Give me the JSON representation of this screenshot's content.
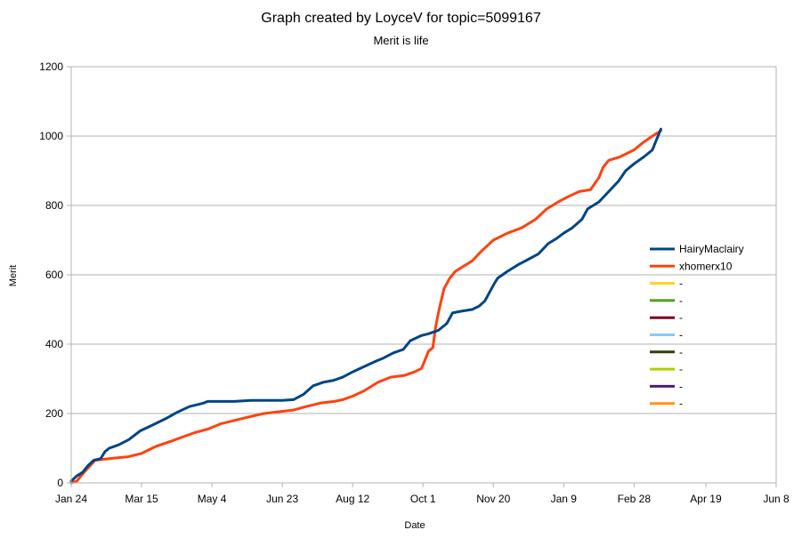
{
  "chart_data": {
    "type": "line",
    "title": "Graph created by LoyceV for topic=5099167",
    "subtitle": "Merit is life",
    "xlabel": "Date",
    "ylabel": "Merit",
    "ylim": [
      0,
      1200
    ],
    "yticks": [
      "0",
      "200",
      "400",
      "600",
      "800",
      "1000",
      "1200"
    ],
    "xlim": [
      "2019-01-24",
      "2020-06-08"
    ],
    "xticks": [
      {
        "date": "2019-01-24",
        "label": "Jan 24"
      },
      {
        "date": "2019-03-15",
        "label": "Mar 15"
      },
      {
        "date": "2019-05-04",
        "label": "May 4"
      },
      {
        "date": "2019-06-23",
        "label": "Jun 23"
      },
      {
        "date": "2019-08-12",
        "label": "Aug 12"
      },
      {
        "date": "2019-10-01",
        "label": "Oct 1"
      },
      {
        "date": "2019-11-20",
        "label": "Nov 20"
      },
      {
        "date": "2020-01-09",
        "label": "Jan 9"
      },
      {
        "date": "2020-02-28",
        "label": "Feb 28"
      },
      {
        "date": "2020-04-19",
        "label": "Apr 19"
      },
      {
        "date": "2020-06-08",
        "label": "Jun 8"
      }
    ],
    "grid": "horizontal",
    "legend_position": "right",
    "series": [
      {
        "name": "HairyMaclairy",
        "color": "#004586",
        "x": [
          "2019-01-24",
          "2019-01-28",
          "2019-02-01",
          "2019-02-05",
          "2019-02-09",
          "2019-02-14",
          "2019-02-17",
          "2019-02-20",
          "2019-02-27",
          "2019-03-06",
          "2019-03-14",
          "2019-03-22",
          "2019-04-01",
          "2019-04-10",
          "2019-04-18",
          "2019-04-28",
          "2019-05-01",
          "2019-05-07",
          "2019-05-20",
          "2019-06-01",
          "2019-06-10",
          "2019-06-23",
          "2019-07-01",
          "2019-07-08",
          "2019-07-15",
          "2019-07-22",
          "2019-07-29",
          "2019-08-05",
          "2019-08-12",
          "2019-08-20",
          "2019-08-28",
          "2019-09-03",
          "2019-09-10",
          "2019-09-17",
          "2019-09-22",
          "2019-09-30",
          "2019-10-05",
          "2019-10-12",
          "2019-10-18",
          "2019-10-22",
          "2019-10-28",
          "2019-11-05",
          "2019-11-10",
          "2019-11-14",
          "2019-11-20",
          "2019-11-23",
          "2019-11-30",
          "2019-12-08",
          "2019-12-15",
          "2019-12-22",
          "2019-12-29",
          "2020-01-04",
          "2020-01-09",
          "2020-01-15",
          "2020-01-22",
          "2020-01-26",
          "2020-02-03",
          "2020-02-10",
          "2020-02-17",
          "2020-02-22",
          "2020-02-28",
          "2020-03-06",
          "2020-03-12",
          "2020-03-18"
        ],
        "values": [
          5,
          20,
          30,
          50,
          65,
          70,
          90,
          100,
          110,
          125,
          150,
          165,
          185,
          205,
          220,
          230,
          235,
          235,
          235,
          238,
          238,
          238,
          240,
          255,
          280,
          290,
          295,
          305,
          320,
          335,
          350,
          360,
          375,
          385,
          410,
          425,
          430,
          440,
          460,
          490,
          495,
          500,
          510,
          525,
          570,
          590,
          610,
          630,
          645,
          660,
          690,
          705,
          720,
          735,
          760,
          790,
          810,
          840,
          870,
          900,
          920,
          940,
          960,
          1020
        ]
      },
      {
        "name": "xhomerx10",
        "color": "#FF420E",
        "x": [
          "2019-01-24",
          "2019-01-28",
          "2019-02-02",
          "2019-02-10",
          "2019-02-20",
          "2019-03-05",
          "2019-03-15",
          "2019-03-25",
          "2019-04-05",
          "2019-04-15",
          "2019-04-22",
          "2019-05-01",
          "2019-05-10",
          "2019-05-20",
          "2019-05-30",
          "2019-06-10",
          "2019-06-20",
          "2019-07-01",
          "2019-07-10",
          "2019-07-20",
          "2019-07-30",
          "2019-08-05",
          "2019-08-12",
          "2019-08-20",
          "2019-08-30",
          "2019-09-08",
          "2019-09-18",
          "2019-09-25",
          "2019-09-30",
          "2019-10-05",
          "2019-10-08",
          "2019-10-10",
          "2019-10-13",
          "2019-10-16",
          "2019-10-20",
          "2019-10-24",
          "2019-10-28",
          "2019-11-05",
          "2019-11-12",
          "2019-11-20",
          "2019-11-30",
          "2019-12-10",
          "2019-12-20",
          "2019-12-28",
          "2020-01-05",
          "2020-01-12",
          "2020-01-20",
          "2020-01-28",
          "2020-02-03",
          "2020-02-06",
          "2020-02-10",
          "2020-02-18",
          "2020-02-28",
          "2020-03-05",
          "2020-03-12",
          "2020-03-18"
        ],
        "values": [
          0,
          5,
          30,
          65,
          70,
          75,
          85,
          105,
          120,
          135,
          145,
          155,
          170,
          180,
          190,
          200,
          205,
          210,
          220,
          230,
          235,
          240,
          250,
          265,
          290,
          305,
          310,
          320,
          330,
          380,
          390,
          450,
          510,
          560,
          590,
          610,
          620,
          640,
          670,
          700,
          720,
          735,
          760,
          790,
          810,
          825,
          840,
          845,
          880,
          910,
          930,
          940,
          960,
          980,
          1000,
          1015
        ]
      },
      {
        "name": "-",
        "color": "#FFD320",
        "x": [],
        "values": []
      },
      {
        "name": "-",
        "color": "#579D1C",
        "x": [],
        "values": []
      },
      {
        "name": "-",
        "color": "#7E0021",
        "x": [],
        "values": []
      },
      {
        "name": "-",
        "color": "#83CAFF",
        "x": [],
        "values": []
      },
      {
        "name": "-",
        "color": "#314004",
        "x": [],
        "values": []
      },
      {
        "name": "-",
        "color": "#AECF00",
        "x": [],
        "values": []
      },
      {
        "name": "-",
        "color": "#4B1F6F",
        "x": [],
        "values": []
      },
      {
        "name": "-",
        "color": "#FF950E",
        "x": [],
        "values": []
      }
    ]
  }
}
